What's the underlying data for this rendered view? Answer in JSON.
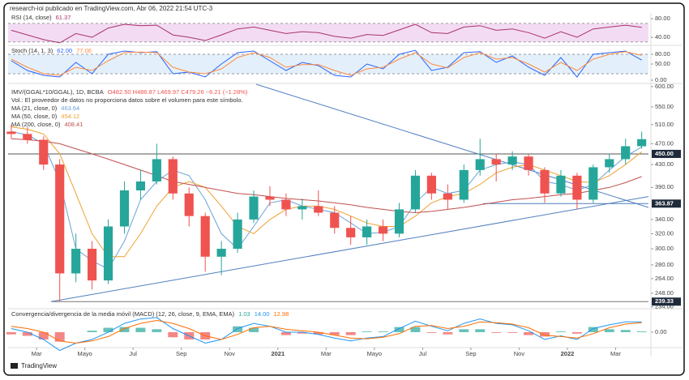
{
  "header": "research-ioi publicado en TradingView.com, Abr 06, 2022 21:54 UTC-3",
  "footer": "TradingView",
  "chart_data": {
    "type": "candlestick",
    "symbol_label": "IMV/(GGAL*10/GGAL), 1D, BCBA",
    "ohlc_label": "O482.50 H486.87 L469.97 C479.26 −6.21 (−1.28%)",
    "volume_note": "Vol.: El proveedor de datos no proporciona datos sobre el volumen para este símbolo.",
    "up_color": "#26a69a",
    "down_color": "#ef5350",
    "log_scale": true,
    "grid": false,
    "xlim": [
      0.82,
      27.36
    ],
    "xticks": [
      {
        "value": 2,
        "label": "Mar"
      },
      {
        "value": 4,
        "label": "Mayo"
      },
      {
        "value": 6,
        "label": "Jul"
      },
      {
        "value": 8,
        "label": "Sep"
      },
      {
        "value": 10,
        "label": "Nov"
      },
      {
        "value": 12,
        "label": "2021"
      },
      {
        "value": 14,
        "label": "Mar"
      },
      {
        "value": 16,
        "label": "Mayo"
      },
      {
        "value": 18,
        "label": "Jul"
      },
      {
        "value": 20,
        "label": "Sep"
      },
      {
        "value": 22,
        "label": "Nov"
      },
      {
        "value": 24,
        "label": "2022"
      },
      {
        "value": 26,
        "label": "Mar"
      }
    ],
    "ylim": [
      233,
      606
    ],
    "yticks": [
      {
        "value": 600,
        "label": "600.00"
      },
      {
        "value": 550,
        "label": "550.00"
      },
      {
        "value": 510,
        "label": "510.00"
      },
      {
        "value": 470,
        "label": "470.00"
      },
      {
        "value": 430,
        "label": "430.00"
      },
      {
        "value": 390,
        "label": "390.00"
      },
      {
        "value": 340,
        "label": "340.00"
      },
      {
        "value": 320,
        "label": "320.00"
      },
      {
        "value": 300,
        "label": "300.00"
      },
      {
        "value": 280,
        "label": "280.00"
      },
      {
        "value": 264,
        "label": "264.00"
      },
      {
        "value": 248,
        "label": "248.00"
      },
      {
        "value": 234,
        "label": "234.00"
      }
    ],
    "x": [
      0.95,
      1.62,
      2.29,
      2.96,
      3.63,
      4.3,
      4.97,
      5.64,
      6.31,
      6.98,
      7.65,
      8.32,
      8.99,
      9.66,
      10.33,
      11.0,
      11.67,
      12.34,
      13.01,
      13.68,
      14.35,
      15.02,
      15.69,
      16.36,
      17.03,
      17.7,
      18.37,
      19.04,
      19.71,
      20.38,
      21.05,
      21.72,
      22.39,
      23.06,
      23.73,
      24.4,
      25.07,
      25.74,
      26.41,
      27.08
    ],
    "open": [
      495,
      490,
      478,
      430,
      270,
      300,
      262,
      330,
      385,
      400,
      440,
      380,
      345,
      290,
      300,
      340,
      375,
      370,
      355,
      360,
      350,
      328,
      315,
      330,
      320,
      355,
      410,
      380,
      370,
      420,
      440,
      430,
      445,
      420,
      380,
      410,
      370,
      425,
      440,
      465
    ],
    "high": [
      510,
      505,
      485,
      440,
      320,
      310,
      340,
      400,
      420,
      470,
      445,
      390,
      350,
      310,
      350,
      385,
      392,
      380,
      372,
      385,
      360,
      345,
      340,
      340,
      365,
      420,
      415,
      395,
      430,
      480,
      450,
      455,
      450,
      425,
      420,
      415,
      430,
      450,
      480,
      495
    ],
    "low": [
      480,
      470,
      420,
      239.33,
      260,
      252,
      258,
      320,
      370,
      395,
      370,
      330,
      272,
      268,
      295,
      335,
      360,
      345,
      340,
      345,
      320,
      305,
      305,
      310,
      315,
      350,
      370,
      355,
      365,
      410,
      400,
      420,
      410,
      365,
      375,
      355,
      365,
      415,
      430,
      460
    ],
    "close": [
      490,
      478,
      430,
      270,
      300,
      262,
      330,
      385,
      400,
      440,
      380,
      345,
      290,
      300,
      340,
      375,
      370,
      355,
      360,
      350,
      328,
      315,
      330,
      320,
      355,
      410,
      380,
      370,
      420,
      440,
      430,
      445,
      420,
      380,
      410,
      370,
      425,
      440,
      465,
      479.26
    ],
    "series": [
      {
        "name": "MA (21, close, 0)",
        "value_label": "463.64",
        "color": "#6aa3d8",
        "values": [
          495,
          488,
          470,
          400,
          300,
          285,
          275,
          310,
          370,
          400,
          420,
          410,
          370,
          320,
          300,
          330,
          365,
          370,
          360,
          355,
          350,
          335,
          320,
          322,
          330,
          365,
          390,
          380,
          385,
          420,
          430,
          435,
          430,
          400,
          395,
          385,
          395,
          420,
          445,
          463.64
        ]
      },
      {
        "name": "MA (50, close, 0)",
        "value_label": "454.12",
        "color": "#f0a030",
        "values": [
          505,
          500,
          490,
          450,
          380,
          320,
          290,
          290,
          320,
          360,
          390,
          400,
          390,
          360,
          330,
          320,
          340,
          355,
          360,
          360,
          355,
          345,
          335,
          330,
          330,
          345,
          365,
          375,
          380,
          395,
          415,
          425,
          430,
          420,
          410,
          400,
          398,
          410,
          430,
          454.12
        ]
      },
      {
        "name": "MA (200, close, 0)",
        "value_label": "408.41",
        "color": "#c0504d",
        "values": [
          480,
          478,
          475,
          470,
          460,
          450,
          440,
          430,
          420,
          410,
          400,
          395,
          390,
          385,
          380,
          378,
          375,
          372,
          370,
          368,
          365,
          362,
          358,
          355,
          352,
          350,
          352,
          355,
          358,
          362,
          366,
          370,
          372,
          375,
          378,
          380,
          385,
          390,
          398,
          408.41
        ]
      }
    ],
    "trendlines": [
      {
        "color": "#4f7fc0",
        "x": [
          2.6,
          27.36
        ],
        "y": [
          239.33,
          375
        ]
      },
      {
        "color": "#4f7fc0",
        "x": [
          11.1,
          27.36
        ],
        "y": [
          606,
          358
        ]
      }
    ],
    "hlines": [
      {
        "value": 450,
        "label": "450.00",
        "from": 0.82,
        "color": "#555555"
      },
      {
        "value": 363.87,
        "label": "363.87",
        "from": 20.5,
        "color": "#4f7fc0"
      },
      {
        "value": 239.33,
        "label": "239.33",
        "from": 2.6,
        "color": "#777777"
      }
    ],
    "indicators": [
      {
        "type": "line",
        "title": "RSI (14, close)",
        "ylim": [
          26,
          89
        ],
        "yticks": [
          {
            "value": 80,
            "label": "80.00"
          },
          {
            "value": 40,
            "label": "40.00"
          }
        ],
        "band": [
          30,
          70
        ],
        "band_color": "#f3dcf3",
        "series": [
          {
            "color": "#a8326e",
            "value_label": "61.37",
            "values": [
              55,
              45,
              35,
              28,
              48,
              40,
              60,
              68,
              65,
              66,
              45,
              40,
              33,
              45,
              58,
              62,
              55,
              48,
              52,
              50,
              42,
              38,
              46,
              44,
              56,
              68,
              50,
              48,
              62,
              65,
              55,
              58,
              50,
              38,
              52,
              40,
              58,
              62,
              66,
              61.37
            ]
          }
        ]
      },
      {
        "type": "line",
        "title": "Stoch (14, 1, 3)",
        "ylim": [
          -7.5,
          102.5
        ],
        "yticks": [
          {
            "value": 80,
            "label": "80.00"
          },
          {
            "value": 50,
            "label": "50.00"
          },
          {
            "value": 0,
            "label": "0.00"
          }
        ],
        "band": [
          20,
          80
        ],
        "band_color": "#e3f0fb",
        "series": [
          {
            "color": "#2962ff",
            "value_label": "62.00",
            "values": [
              60,
              30,
              15,
              10,
              55,
              20,
              80,
              90,
              85,
              88,
              20,
              25,
              10,
              50,
              85,
              90,
              60,
              30,
              55,
              45,
              15,
              10,
              50,
              35,
              80,
              92,
              30,
              40,
              85,
              88,
              55,
              75,
              40,
              15,
              70,
              10,
              80,
              85,
              90,
              62
            ]
          },
          {
            "color": "#ff8a3d",
            "value_label": "77.06",
            "values": [
              65,
              40,
              20,
              15,
              40,
              30,
              60,
              85,
              87,
              85,
              40,
              25,
              20,
              35,
              70,
              85,
              70,
              40,
              48,
              48,
              30,
              15,
              35,
              40,
              65,
              85,
              50,
              38,
              70,
              85,
              65,
              70,
              50,
              25,
              55,
              30,
              65,
              80,
              88,
              77.06
            ]
          }
        ]
      },
      {
        "type": "macd",
        "title": "Convergencia/divergencia de la media móvil (MACD) (12, 26, close, 9, EMA, EMA)",
        "ylim": [
          -20,
          31
        ],
        "yticks": [
          {
            "value": 0,
            "label": "0.00"
          }
        ],
        "histogram": {
          "value_label": "1.03",
          "up_color": "#26a69a",
          "down_color": "#ef5350",
          "values": [
            -3,
            -5,
            -10,
            -13,
            0,
            2,
            6,
            7,
            6,
            4,
            -7,
            -10,
            -10,
            0,
            8,
            6,
            0,
            -4,
            -2,
            -3,
            -4,
            -4,
            1,
            1,
            7,
            7,
            -1,
            -3,
            4,
            4,
            -1,
            -1,
            -4,
            -6,
            1,
            -2,
            7,
            4,
            3,
            1.03
          ]
        },
        "series": [
          {
            "color": "#2196f3",
            "value_label": "14.00",
            "values": [
              5,
              0,
              -10,
              -25,
              -15,
              -10,
              0,
              12,
              18,
              20,
              5,
              -5,
              -15,
              -10,
              5,
              12,
              8,
              0,
              0,
              -3,
              -8,
              -12,
              -8,
              -6,
              5,
              15,
              8,
              2,
              12,
              18,
              12,
              10,
              2,
              -10,
              -5,
              -10,
              5,
              10,
              14,
              14
            ]
          },
          {
            "color": "#ff6d00",
            "value_label": "12.98",
            "values": [
              8,
              5,
              0,
              -12,
              -15,
              -12,
              -6,
              5,
              12,
              16,
              12,
              5,
              -5,
              -10,
              -3,
              6,
              8,
              4,
              2,
              0,
              -4,
              -8,
              -9,
              -7,
              -2,
              8,
              9,
              5,
              8,
              14,
              13,
              11,
              6,
              -4,
              -6,
              -8,
              -2,
              6,
              11,
              12.98
            ]
          }
        ]
      }
    ]
  }
}
